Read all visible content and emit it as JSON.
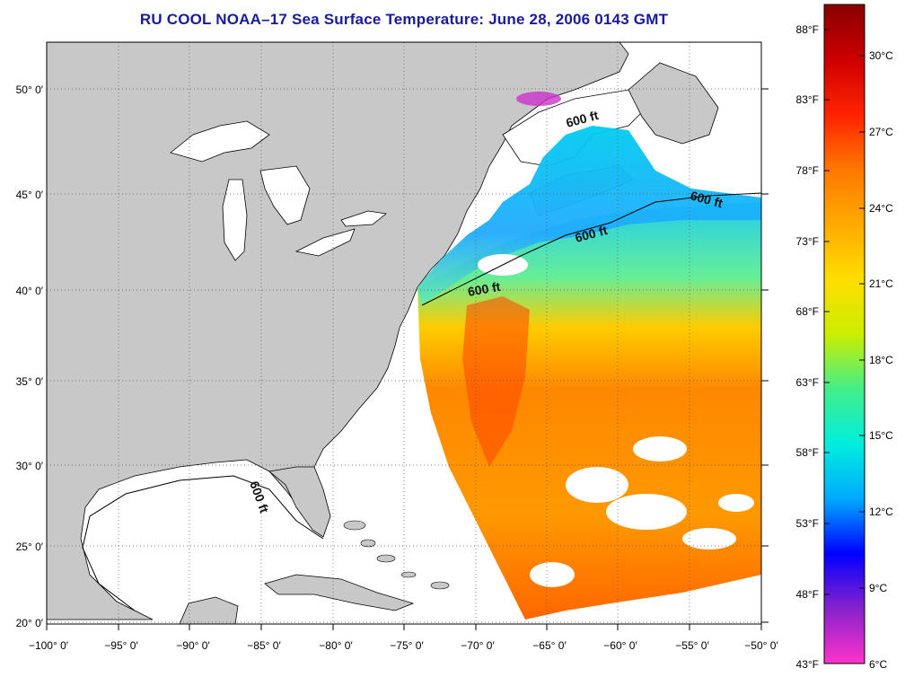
{
  "title": "RU COOL  NOAA–17  Sea Surface Temperature:  June 28, 2006 0143 GMT",
  "lat_ticks": [
    "50° 0′",
    "45° 0′",
    "40° 0′",
    "35° 0′",
    "30° 0′",
    "25° 0′",
    "20° 0′"
  ],
  "lon_ticks": [
    "−100° 0′",
    "−95° 0′",
    "−90° 0′",
    "−85° 0′",
    "−80° 0′",
    "−75° 0′",
    "−70° 0′",
    "−65° 0′",
    "−60° 0′",
    "−55° 0′",
    "−50° 0′"
  ],
  "depth_labels": [
    "600 ft",
    "600 ft",
    "600 ft",
    "600 ft",
    "600 ft"
  ],
  "colorbar": {
    "fahrenheit": [
      "88°F",
      "83°F",
      "78°F",
      "73°F",
      "68°F",
      "63°F",
      "58°F",
      "53°F",
      "48°F",
      "43°F"
    ],
    "celsius": [
      "30°C",
      "27°C",
      "24°C",
      "21°C",
      "18°C",
      "15°C",
      "12°C",
      "9°C",
      "6°C"
    ],
    "colors": [
      "#ff33cc",
      "#8822cc",
      "#0000ff",
      "#00aaff",
      "#00eedd",
      "#44ee88",
      "#ccee00",
      "#ffdd00",
      "#ffaa00",
      "#ff7700",
      "#ff2200",
      "#cc0000",
      "#880000"
    ]
  },
  "colors": {
    "land": "#c8c8c8",
    "water": "#ffffff",
    "title": "#1a1aa0"
  }
}
